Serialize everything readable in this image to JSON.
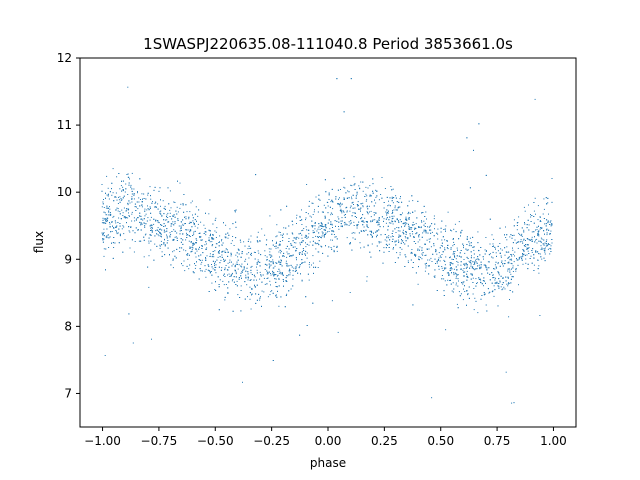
{
  "chart_data": {
    "type": "scatter",
    "title": "1SWASPJ220635.08-111040.8 Period 3853661.0s",
    "xlabel": "phase",
    "ylabel": "flux",
    "xlim": [
      -1.1,
      1.1
    ],
    "ylim": [
      6.5,
      12.0
    ],
    "xticks": [
      -1.0,
      -0.75,
      -0.5,
      -0.25,
      0.0,
      0.25,
      0.5,
      0.75,
      1.0
    ],
    "xtick_labels": [
      "−1.00",
      "−0.75",
      "−0.50",
      "−0.25",
      "0.00",
      "0.25",
      "0.50",
      "0.75",
      "1.00"
    ],
    "yticks": [
      7,
      8,
      9,
      10,
      11,
      12
    ],
    "ytick_labels": [
      "7",
      "8",
      "9",
      "10",
      "11",
      "12"
    ],
    "grid": false,
    "marker_color": "#1f77b4",
    "series": [
      {
        "phase_coverage": [
          -1.0,
          1.0
        ],
        "mean_curve": {
          "phase": [
            -1.0,
            -0.9,
            -0.8,
            -0.7,
            -0.6,
            -0.5,
            -0.4,
            -0.3,
            -0.2,
            -0.1,
            0.0,
            0.1,
            0.2,
            0.3,
            0.4,
            0.5,
            0.6,
            0.7,
            0.8,
            0.9,
            1.0
          ],
          "flux": [
            9.5,
            9.8,
            9.6,
            9.5,
            9.3,
            9.1,
            8.9,
            8.8,
            9.0,
            9.3,
            9.5,
            9.8,
            9.6,
            9.5,
            9.3,
            9.1,
            8.9,
            8.8,
            9.0,
            9.3,
            9.5
          ]
        },
        "typical_spread": 0.55,
        "flux_range": [
          6.8,
          11.7
        ]
      }
    ]
  }
}
